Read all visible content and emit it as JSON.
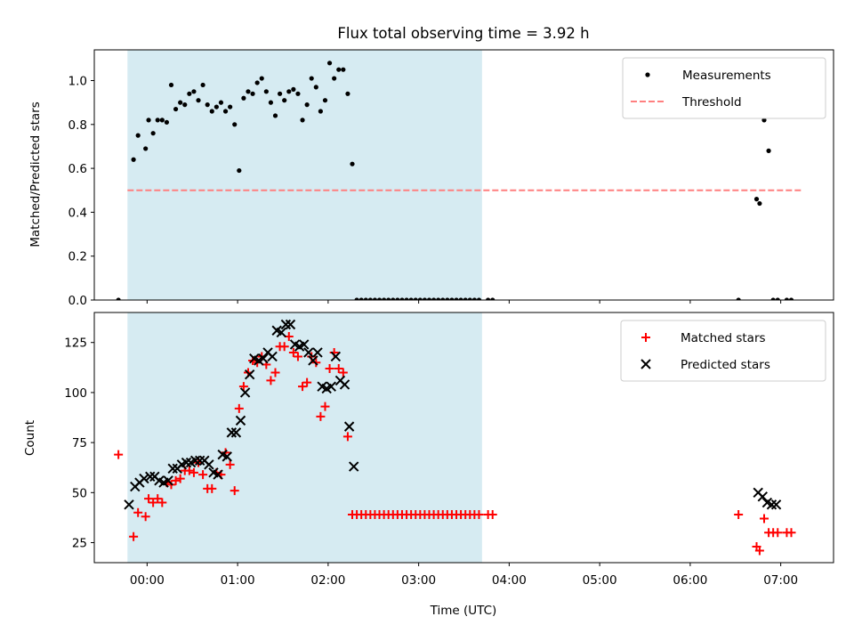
{
  "chart_data": [
    {
      "type": "scatter",
      "title": "Flux total observing time = 3.92 h",
      "ylabel": "Matched/Predicted stars",
      "xlabel": "",
      "xlim": [
        "23:25",
        "07:35"
      ],
      "ylim": [
        0,
        1.14
      ],
      "yticks": [
        "0.0",
        "0.2",
        "0.4",
        "0.6",
        "0.8",
        "1.0"
      ],
      "yticks_values": [
        0,
        0.2,
        0.4,
        0.6,
        0.8,
        1.0
      ],
      "grid": false,
      "legend": "upper right",
      "shaded_span": [
        "23:47",
        "03:42"
      ],
      "series": [
        {
          "name": "Measurements",
          "color": "#000000",
          "marker": "dot",
          "x": [
            "23:41",
            "23:51",
            "23:54",
            "23:59",
            "00:01",
            "00:04",
            "00:07",
            "00:10",
            "00:13",
            "00:16",
            "00:19",
            "00:22",
            "00:25",
            "00:28",
            "00:31",
            "00:34",
            "00:37",
            "00:40",
            "00:43",
            "00:46",
            "00:49",
            "00:52",
            "00:55",
            "00:58",
            "01:01",
            "01:04",
            "01:07",
            "01:10",
            "01:13",
            "01:16",
            "01:19",
            "01:22",
            "01:25",
            "01:28",
            "01:31",
            "01:34",
            "01:37",
            "01:40",
            "01:43",
            "01:46",
            "01:49",
            "01:52",
            "01:55",
            "01:58",
            "02:01",
            "02:04",
            "02:07",
            "02:10",
            "02:13",
            "02:16",
            "02:19",
            "02:22",
            "02:25",
            "02:28",
            "02:31",
            "02:34",
            "02:37",
            "02:40",
            "02:43",
            "02:46",
            "02:49",
            "02:52",
            "02:55",
            "02:58",
            "03:01",
            "03:04",
            "03:07",
            "03:10",
            "03:13",
            "03:16",
            "03:19",
            "03:22",
            "03:25",
            "03:28",
            "03:31",
            "03:34",
            "03:37",
            "03:40",
            "03:46",
            "03:49",
            "06:32",
            "06:44",
            "06:46",
            "06:49",
            "06:52",
            "06:55",
            "06:58",
            "07:04",
            "07:07"
          ],
          "y": [
            0.0,
            0.64,
            0.75,
            0.69,
            0.82,
            0.76,
            0.82,
            0.82,
            0.81,
            0.98,
            0.87,
            0.9,
            0.89,
            0.94,
            0.95,
            0.91,
            0.98,
            0.89,
            0.86,
            0.88,
            0.9,
            0.86,
            0.88,
            0.8,
            0.59,
            0.92,
            0.95,
            0.94,
            0.99,
            1.01,
            0.95,
            0.9,
            0.84,
            0.94,
            0.91,
            0.95,
            0.96,
            0.94,
            0.82,
            0.89,
            1.01,
            0.97,
            0.86,
            0.91,
            1.08,
            1.01,
            1.05,
            1.05,
            0.94,
            0.62,
            0.0,
            0.0,
            0.0,
            0.0,
            0.0,
            0.0,
            0.0,
            0.0,
            0.0,
            0.0,
            0.0,
            0.0,
            0.0,
            0.0,
            0.0,
            0.0,
            0.0,
            0.0,
            0.0,
            0.0,
            0.0,
            0.0,
            0.0,
            0.0,
            0.0,
            0.0,
            0.0,
            0.0,
            0.0,
            0.0,
            0.0,
            0.46,
            0.44,
            0.82,
            0.68,
            0.0,
            0.0,
            0.0,
            0.0
          ]
        },
        {
          "name": "Threshold",
          "color": "#ff7f7f",
          "style": "dashed",
          "x": [
            "23:47",
            "07:14"
          ],
          "y": [
            0.5,
            0.5
          ]
        }
      ]
    },
    {
      "type": "scatter",
      "title": "",
      "ylabel": "Count",
      "xlabel": "Time (UTC)",
      "xlim": [
        "23:25",
        "07:35"
      ],
      "xticks": [
        "00:00",
        "01:00",
        "02:00",
        "03:00",
        "04:00",
        "05:00",
        "06:00",
        "07:00"
      ],
      "ylim": [
        15,
        140
      ],
      "yticks": [
        "25",
        "50",
        "75",
        "100",
        "125"
      ],
      "yticks_values": [
        25,
        50,
        75,
        100,
        125
      ],
      "grid": false,
      "legend": "upper right",
      "shaded_span": [
        "23:47",
        "03:42"
      ],
      "series": [
        {
          "name": "Matched stars",
          "color": "#ff0000",
          "marker": "plus",
          "x": [
            "23:41",
            "23:51",
            "23:54",
            "23:59",
            "00:01",
            "00:04",
            "00:07",
            "00:10",
            "00:13",
            "00:16",
            "00:19",
            "00:22",
            "00:25",
            "00:28",
            "00:31",
            "00:34",
            "00:37",
            "00:40",
            "00:43",
            "00:46",
            "00:49",
            "00:52",
            "00:55",
            "00:58",
            "01:01",
            "01:04",
            "01:07",
            "01:10",
            "01:13",
            "01:16",
            "01:19",
            "01:22",
            "01:25",
            "01:28",
            "01:31",
            "01:34",
            "01:37",
            "01:40",
            "01:43",
            "01:46",
            "01:49",
            "01:52",
            "01:55",
            "01:58",
            "02:01",
            "02:04",
            "02:07",
            "02:10",
            "02:13",
            "02:16",
            "02:19",
            "02:22",
            "02:25",
            "02:28",
            "02:31",
            "02:34",
            "02:37",
            "02:40",
            "02:43",
            "02:46",
            "02:49",
            "02:52",
            "02:55",
            "02:58",
            "03:01",
            "03:04",
            "03:07",
            "03:10",
            "03:13",
            "03:16",
            "03:19",
            "03:22",
            "03:25",
            "03:28",
            "03:31",
            "03:34",
            "03:37",
            "03:40",
            "03:46",
            "03:49",
            "06:32",
            "06:44",
            "06:46",
            "06:49",
            "06:52",
            "06:55",
            "06:58",
            "07:04",
            "07:07"
          ],
          "y": [
            69,
            28,
            40,
            38,
            47,
            45,
            47,
            45,
            55,
            54,
            56,
            57,
            61,
            61,
            60,
            65,
            59,
            52,
            52,
            60,
            59,
            70,
            64,
            51,
            92,
            103,
            110,
            116,
            115,
            118,
            114,
            106,
            110,
            123,
            123,
            128,
            120,
            118,
            103,
            105,
            118,
            115,
            88,
            93,
            112,
            120,
            112,
            110,
            78,
            39,
            39,
            39,
            39,
            39,
            39,
            39,
            39,
            39,
            39,
            39,
            39,
            39,
            39,
            39,
            39,
            39,
            39,
            39,
            39,
            39,
            39,
            39,
            39,
            39,
            39,
            39,
            39,
            39,
            39,
            39,
            39,
            23,
            21,
            37,
            30,
            30,
            30,
            30,
            30
          ]
        },
        {
          "name": "Predicted stars",
          "color": "#000000",
          "marker": "x",
          "x": [
            "23:48",
            "23:52",
            "23:55",
            "23:58",
            "00:02",
            "00:05",
            "00:08",
            "00:11",
            "00:14",
            "00:17",
            "00:20",
            "00:23",
            "00:26",
            "00:29",
            "00:32",
            "00:35",
            "00:38",
            "00:41",
            "00:44",
            "00:47",
            "00:50",
            "00:53",
            "00:56",
            "00:59",
            "01:02",
            "01:05",
            "01:08",
            "01:11",
            "01:14",
            "01:17",
            "01:20",
            "01:23",
            "01:26",
            "01:29",
            "01:32",
            "01:35",
            "01:38",
            "01:41",
            "01:44",
            "01:47",
            "01:50",
            "01:53",
            "01:56",
            "01:59",
            "02:02",
            "02:05",
            "02:08",
            "02:11",
            "02:14",
            "02:17",
            "06:45",
            "06:48",
            "06:51",
            "06:54",
            "06:57"
          ],
          "y": [
            44,
            53,
            55,
            57,
            58,
            58,
            56,
            55,
            56,
            62,
            62,
            64,
            65,
            65,
            66,
            66,
            66,
            64,
            60,
            59,
            69,
            68,
            80,
            80,
            86,
            100,
            109,
            117,
            116,
            117,
            120,
            118,
            131,
            130,
            134,
            134,
            124,
            123,
            124,
            120,
            116,
            120,
            103,
            102,
            103,
            118,
            106,
            104,
            83,
            63,
            50,
            48,
            45,
            44,
            44
          ]
        }
      ]
    }
  ]
}
